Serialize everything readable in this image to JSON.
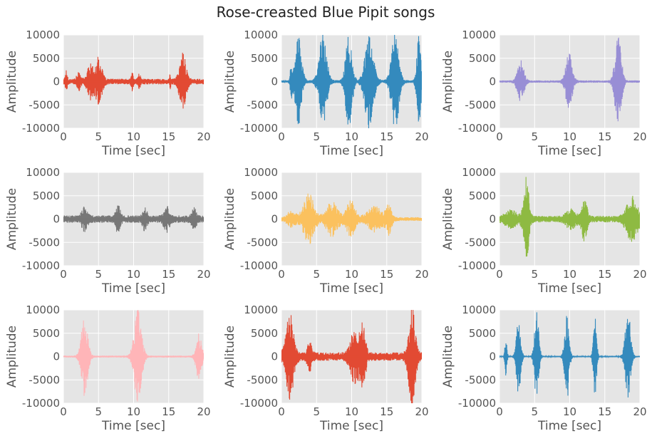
{
  "chart_data": {
    "type": "line",
    "suptitle": "Rose-creasted Blue Pipit songs",
    "background": "#e5e5e5",
    "grid": true,
    "subplots": [
      {
        "color": "#e24a33",
        "xlabel": "Time [sec]",
        "ylabel": "Amplitude",
        "xlim": [
          0,
          20
        ],
        "ylim": [
          -10000,
          10000
        ],
        "base_amp": 600,
        "bursts": [
          {
            "t": 0.4,
            "w": 0.2,
            "amp": 2000
          },
          {
            "t": 2.2,
            "w": 0.4,
            "amp": 1500
          },
          {
            "t": 3.8,
            "w": 0.5,
            "amp": 3500
          },
          {
            "t": 5.0,
            "w": 0.6,
            "amp": 4800
          },
          {
            "t": 9.8,
            "w": 0.2,
            "amp": 1500
          },
          {
            "t": 10.8,
            "w": 0.2,
            "amp": 1600
          },
          {
            "t": 15.2,
            "w": 0.1,
            "amp": 1600
          },
          {
            "t": 17.0,
            "w": 0.6,
            "amp": 5800
          }
        ]
      },
      {
        "color": "#348abd",
        "xlabel": "Time [sec]",
        "ylabel": "Amplitude",
        "xlim": [
          0,
          20
        ],
        "ylim": [
          -10000,
          10000
        ],
        "base_amp": 300,
        "bursts": [
          {
            "t": 1.4,
            "w": 0.2,
            "amp": 3500
          },
          {
            "t": 2.4,
            "w": 0.6,
            "amp": 10000
          },
          {
            "t": 5.9,
            "w": 0.7,
            "amp": 10000
          },
          {
            "t": 9.6,
            "w": 0.6,
            "amp": 10000
          },
          {
            "t": 12.5,
            "w": 0.8,
            "amp": 10000
          },
          {
            "t": 16.2,
            "w": 0.7,
            "amp": 10000
          },
          {
            "t": 19.6,
            "w": 0.4,
            "amp": 10000
          }
        ]
      },
      {
        "color": "#988ed5",
        "xlabel": "Time [sec]",
        "ylabel": "Amplitude",
        "xlim": [
          0,
          20
        ],
        "ylim": [
          -10000,
          10000
        ],
        "base_amp": 250,
        "bursts": [
          {
            "t": 3.0,
            "w": 0.6,
            "amp": 4500
          },
          {
            "t": 9.9,
            "w": 0.6,
            "amp": 6000
          },
          {
            "t": 16.9,
            "w": 0.6,
            "amp": 9500
          }
        ]
      },
      {
        "color": "#777777",
        "xlabel": "Time [sec]",
        "ylabel": "Amplitude",
        "xlim": [
          0,
          20
        ],
        "ylim": [
          -10000,
          10000
        ],
        "base_amp": 800,
        "bursts": [
          {
            "t": 3.0,
            "w": 0.5,
            "amp": 2000
          },
          {
            "t": 7.8,
            "w": 0.4,
            "amp": 2800
          },
          {
            "t": 11.6,
            "w": 0.4,
            "amp": 2000
          },
          {
            "t": 14.7,
            "w": 0.5,
            "amp": 2200
          },
          {
            "t": 18.6,
            "w": 0.4,
            "amp": 2000
          }
        ]
      },
      {
        "color": "#fbc15e",
        "xlabel": "Time [sec]",
        "ylabel": "Amplitude",
        "xlim": [
          0,
          20
        ],
        "ylim": [
          -10000,
          10000
        ],
        "base_amp": 400,
        "bursts": [
          {
            "t": 1.4,
            "w": 0.8,
            "amp": 1500
          },
          {
            "t": 3.9,
            "w": 1.0,
            "amp": 5200
          },
          {
            "t": 7.2,
            "w": 1.1,
            "amp": 3500
          },
          {
            "t": 9.9,
            "w": 0.8,
            "amp": 3800
          },
          {
            "t": 13.3,
            "w": 1.4,
            "amp": 2500
          },
          {
            "t": 15.3,
            "w": 0.5,
            "amp": 3000
          }
        ]
      },
      {
        "color": "#8eba42",
        "xlabel": "Time [sec]",
        "ylabel": "Amplitude",
        "xlim": [
          0,
          20
        ],
        "ylim": [
          -10000,
          10000
        ],
        "base_amp": 700,
        "bursts": [
          {
            "t": 1.6,
            "w": 1.0,
            "amp": 1500
          },
          {
            "t": 3.8,
            "w": 0.5,
            "amp": 8500
          },
          {
            "t": 10.2,
            "w": 0.9,
            "amp": 1800
          },
          {
            "t": 12.1,
            "w": 0.5,
            "amp": 4500
          },
          {
            "t": 18.9,
            "w": 1.0,
            "amp": 4500
          }
        ]
      },
      {
        "color": "#ffb5b8",
        "xlabel": "Time [sec]",
        "ylabel": "Amplitude",
        "xlim": [
          0,
          20
        ],
        "ylim": [
          -10000,
          10000
        ],
        "base_amp": 200,
        "bursts": [
          {
            "t": 3.0,
            "w": 0.6,
            "amp": 8500
          },
          {
            "t": 10.6,
            "w": 0.7,
            "amp": 10000
          },
          {
            "t": 19.3,
            "w": 0.5,
            "amp": 5000
          }
        ]
      },
      {
        "color": "#e24a33",
        "xlabel": "Time [sec]",
        "ylabel": "Amplitude",
        "xlim": [
          0,
          20
        ],
        "ylim": [
          -10000,
          10000
        ],
        "base_amp": 900,
        "bursts": [
          {
            "t": 1.2,
            "w": 0.7,
            "amp": 8500
          },
          {
            "t": 4.0,
            "w": 0.4,
            "amp": 2500
          },
          {
            "t": 10.4,
            "w": 0.8,
            "amp": 5000
          },
          {
            "t": 11.6,
            "w": 0.5,
            "amp": 6000
          },
          {
            "t": 18.6,
            "w": 0.6,
            "amp": 10000
          }
        ]
      },
      {
        "color": "#348abd",
        "xlabel": "Time [sec]",
        "ylabel": "Amplitude",
        "xlim": [
          0,
          20
        ],
        "ylim": [
          -10000,
          10000
        ],
        "base_amp": 150,
        "bursts": [
          {
            "t": 0.9,
            "w": 0.2,
            "amp": 4000
          },
          {
            "t": 2.7,
            "w": 0.4,
            "amp": 8500
          },
          {
            "t": 5.3,
            "w": 0.4,
            "amp": 10000
          },
          {
            "t": 9.6,
            "w": 0.4,
            "amp": 10000
          },
          {
            "t": 13.6,
            "w": 0.3,
            "amp": 8500
          },
          {
            "t": 18.3,
            "w": 0.5,
            "amp": 10000
          }
        ]
      }
    ],
    "xticks": [
      0,
      5,
      10,
      15,
      20
    ],
    "yticks": [
      -10000,
      -5000,
      0,
      5000,
      10000
    ]
  }
}
